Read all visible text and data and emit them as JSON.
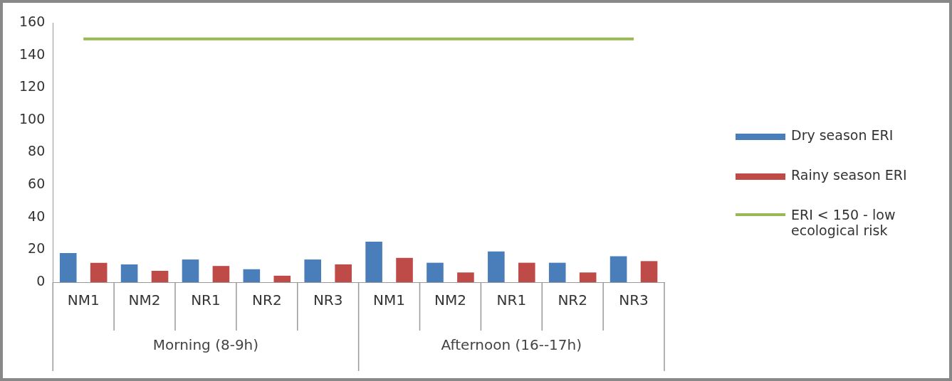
{
  "chart_data": {
    "type": "bar",
    "categories": [
      "NM1",
      "NM2",
      "NR1",
      "NR2",
      "NR3",
      "NM1",
      "NM2",
      "NR1",
      "NR2",
      "NR3"
    ],
    "series": [
      {
        "name": "Dry season ERI",
        "color": "#4a7ebb",
        "values": [
          18,
          11,
          14,
          8,
          14,
          25,
          12,
          19,
          12,
          16
        ]
      },
      {
        "name": "Rainy season ERI",
        "color": "#be4b48",
        "values": [
          12,
          7,
          10,
          4,
          11,
          15,
          6,
          12,
          6,
          13
        ]
      },
      {
        "name": "ERI < 150 - low ecological risk",
        "type": "line",
        "color": "#98b954",
        "values": [
          150,
          150,
          150,
          150,
          150,
          150,
          150,
          150,
          150,
          150
        ]
      }
    ],
    "annotations": [
      "Morning (8-9h)",
      "Afternoon (16--17h)"
    ],
    "ylim": [
      0,
      160
    ],
    "yticks": [
      0,
      20,
      40,
      60,
      80,
      100,
      120,
      140,
      160
    ],
    "legend": "right",
    "marker": "none"
  }
}
